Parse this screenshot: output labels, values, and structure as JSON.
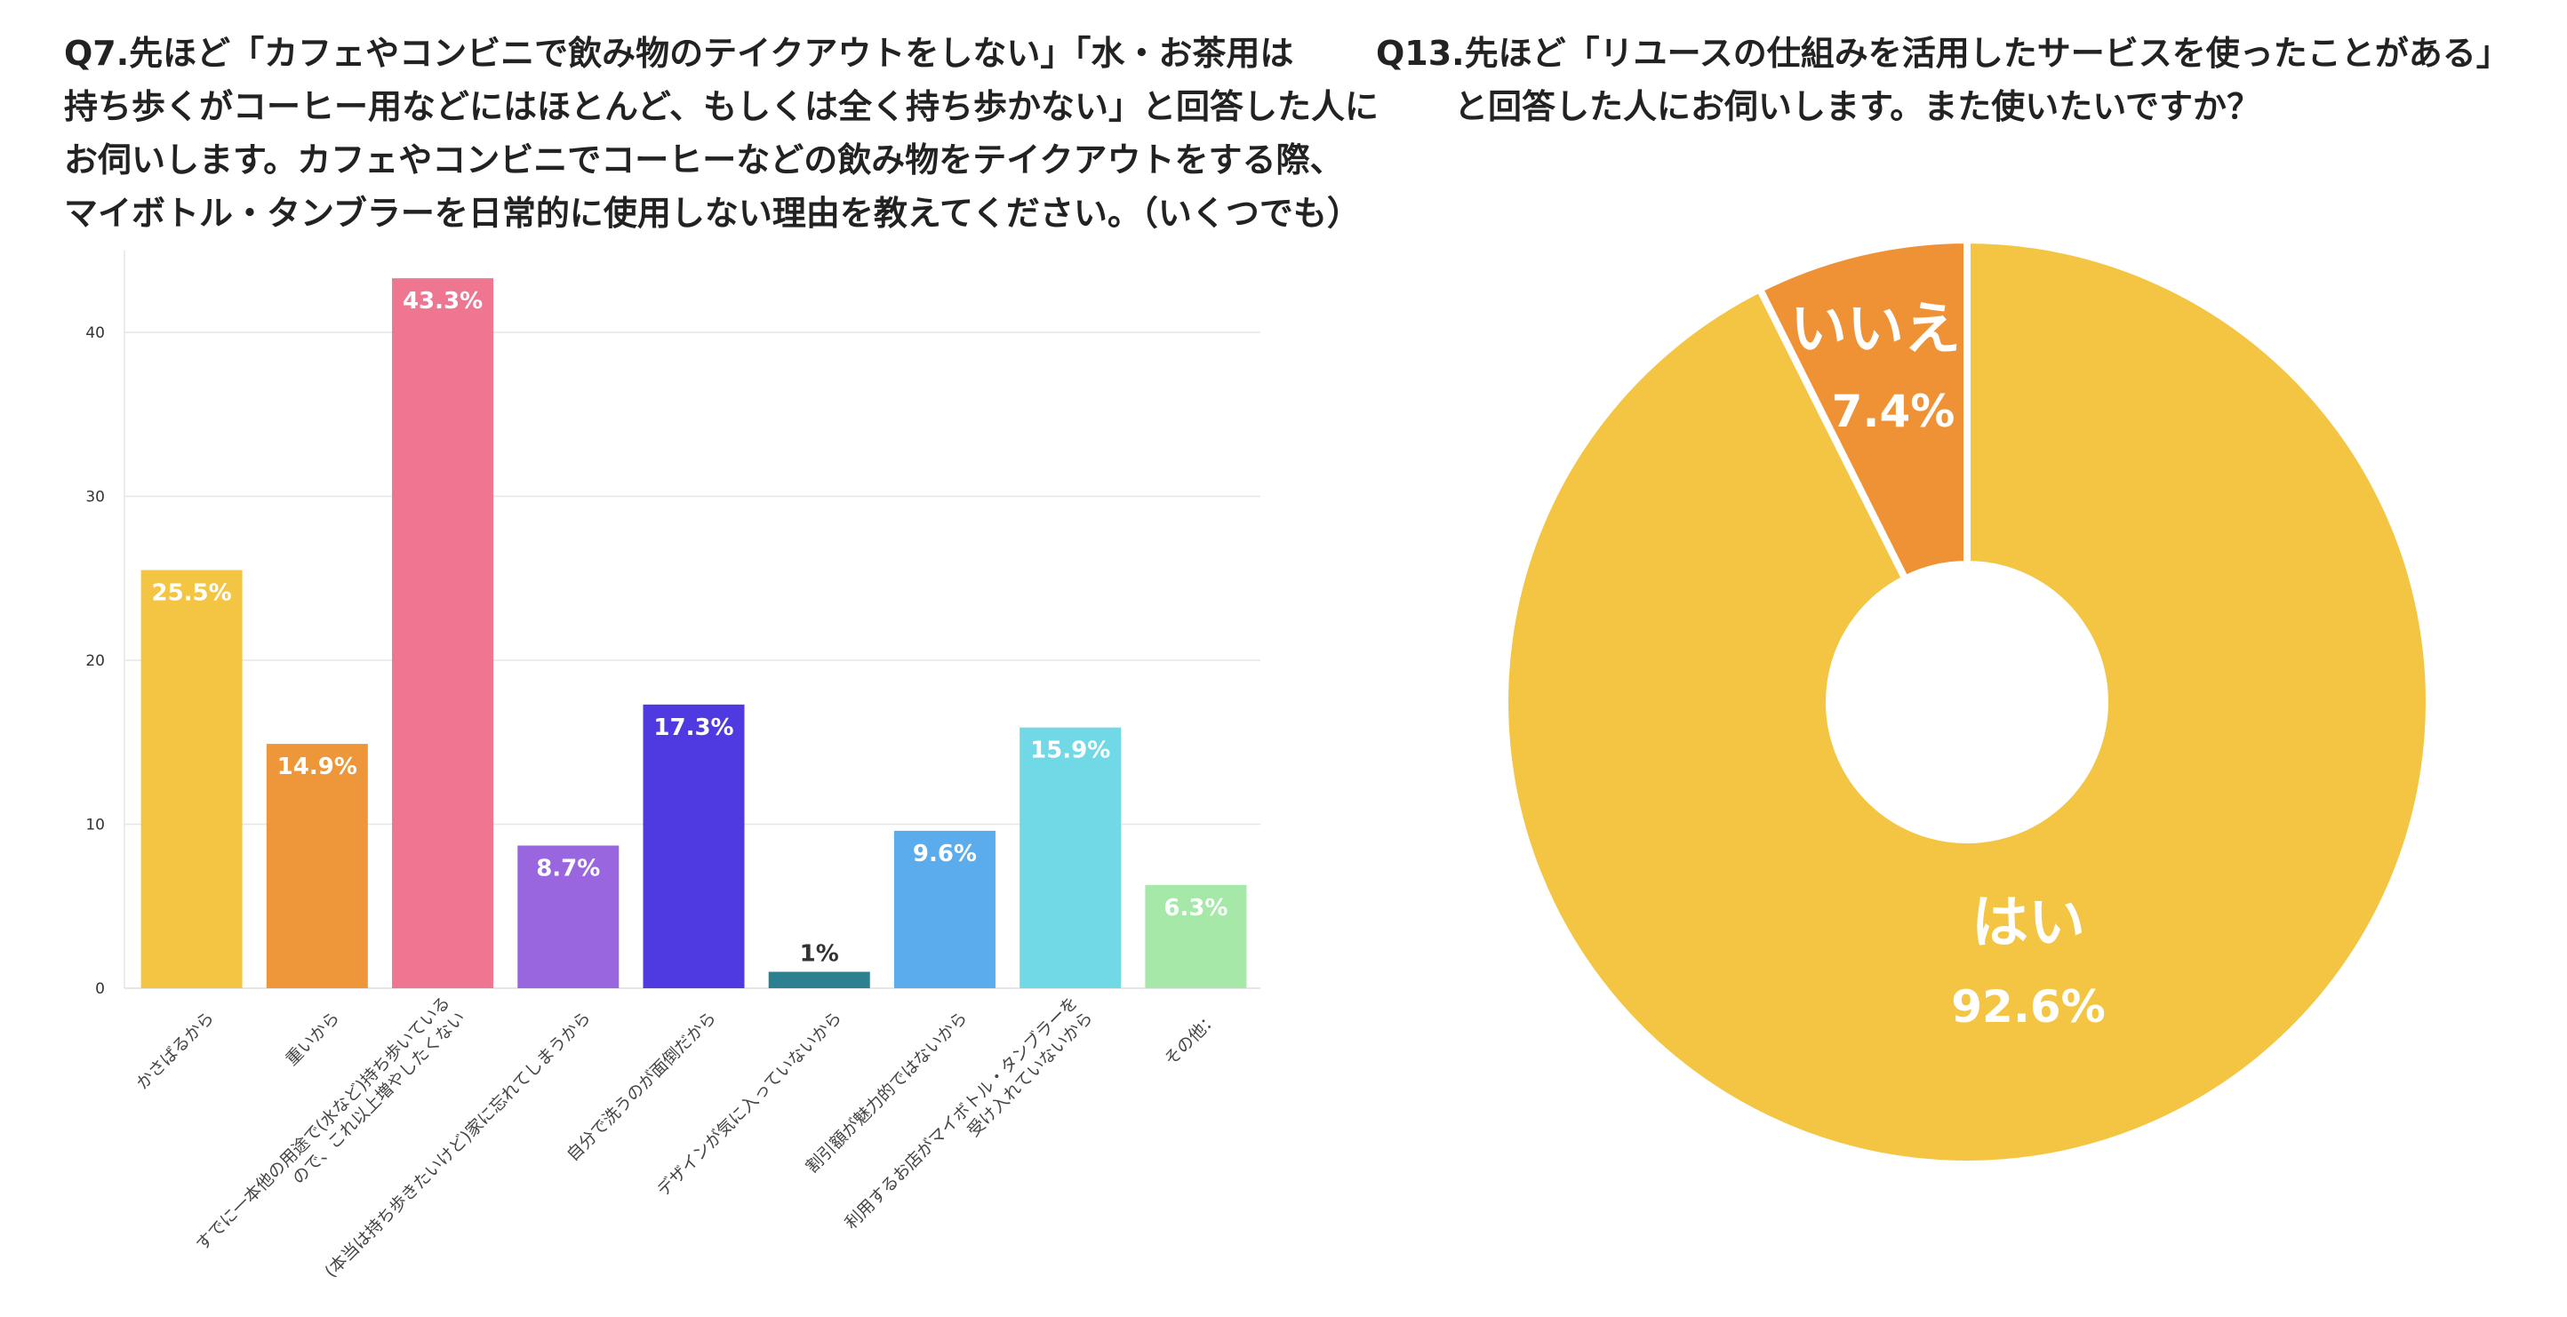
{
  "q7": {
    "title_lines": [
      "Q7.先ほど「カフェやコンビニで飲み物のテイクアウトをしない」「水・お茶用は",
      "持ち歩くがコーヒー用などにはほとんど、もしくは全く持ち歩かない」と回答した人に",
      "お伺いします。カフェやコンビニでコーヒーなどの飲み物をテイクアウトをする際、",
      "マイボトル・タンブラーを日常的に使用しない理由を教えてください。（いくつでも）"
    ]
  },
  "q13": {
    "title_lines": [
      "Q13.先ほど「リユースの仕組みを活用したサービスを使ったことがある」",
      "と回答した人にお伺いします。また使いたいですか？"
    ]
  },
  "chart_data": [
    {
      "type": "bar",
      "categories": [
        [
          "かさばるから"
        ],
        [
          "重いから"
        ],
        [
          "すでに一本他の用途で(水など)持ち歩いている",
          "ので、これ以上増やしたくない"
        ],
        [
          "(本当は持ち歩きたいけど)家に忘れてしまうから"
        ],
        [
          "自分で洗うのが面倒だから"
        ],
        [
          "デザインが気に入っていないから"
        ],
        [
          "割引額が魅力的ではないから"
        ],
        [
          "利用するお店がマイボトル・タンブラーを",
          "受け入れていないから"
        ],
        [
          "その他："
        ]
      ],
      "values": [
        25.5,
        14.9,
        43.3,
        8.7,
        17.3,
        1,
        9.6,
        15.9,
        6.3
      ],
      "value_labels": [
        "25.5%",
        "14.9%",
        "43.3%",
        "8.7%",
        "17.3%",
        "1%",
        "9.6%",
        "15.9%",
        "6.3%"
      ],
      "colors": [
        "#F4C542",
        "#EE963A",
        "#EE7690",
        "#9966DF",
        "#4E3AE0",
        "#2D8090",
        "#5BACEC",
        "#70D9E5",
        "#A6E8A8"
      ],
      "value_label_colors": [
        "#ffffff",
        "#ffffff",
        "#ffffff",
        "#ffffff",
        "#ffffff",
        "#333333",
        "#ffffff",
        "#ffffff",
        "#ffffff"
      ],
      "yticks": [
        0,
        10,
        20,
        30,
        40
      ],
      "ylim": [
        0,
        45
      ],
      "grid": true
    },
    {
      "type": "pie",
      "donut": true,
      "labels": [
        "はい",
        "いいえ"
      ],
      "values": [
        92.6,
        7.4
      ],
      "value_labels": [
        "92.6%",
        "7.4%"
      ],
      "colors": [
        "#F4C542",
        "#EF9236"
      ]
    }
  ]
}
